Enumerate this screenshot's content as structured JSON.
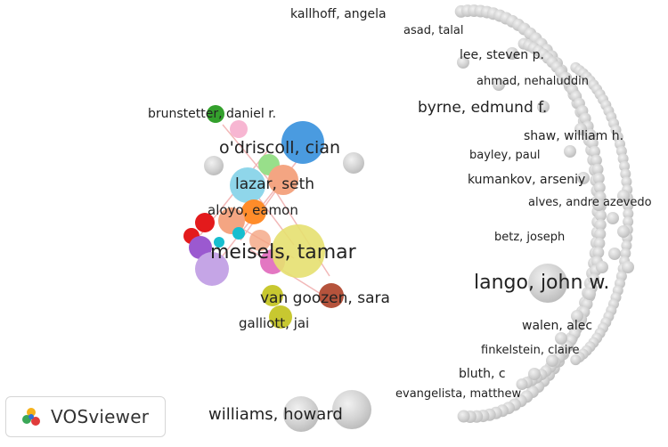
{
  "app": {
    "name": "VOSviewer"
  },
  "network": {
    "type": "co-authorship network",
    "labels": [
      {
        "id": "kallhoff-angela",
        "text": "kallhoff, angela",
        "cluster_color": "#bdbdbd"
      },
      {
        "id": "asad-talal",
        "text": "asad, talal",
        "cluster_color": "#bdbdbd"
      },
      {
        "id": "lee-steven-p",
        "text": "lee, steven p.",
        "cluster_color": "#bdbdbd"
      },
      {
        "id": "ahmad-nehaluddin",
        "text": "ahmad, nehaluddin",
        "cluster_color": "#bdbdbd"
      },
      {
        "id": "byrne-edmund-f",
        "text": "byrne, edmund f.",
        "cluster_color": "#bdbdbd"
      },
      {
        "id": "shaw-william-h",
        "text": "shaw, william h.",
        "cluster_color": "#bdbdbd"
      },
      {
        "id": "bayley-paul",
        "text": "bayley, paul",
        "cluster_color": "#bdbdbd"
      },
      {
        "id": "kumankov-arseniy",
        "text": "kumankov, arseniy",
        "cluster_color": "#bdbdbd"
      },
      {
        "id": "alves-andre-azevedo",
        "text": "alves, andre azevedo",
        "cluster_color": "#bdbdbd"
      },
      {
        "id": "betz-joseph",
        "text": "betz, joseph",
        "cluster_color": "#bdbdbd"
      },
      {
        "id": "lango-john-w",
        "text": "lango, john w.",
        "cluster_color": "#bdbdbd"
      },
      {
        "id": "walen-alec",
        "text": "walen, alec",
        "cluster_color": "#bdbdbd"
      },
      {
        "id": "finkelstein-claire",
        "text": "finkelstein, claire",
        "cluster_color": "#bdbdbd"
      },
      {
        "id": "bluth-c",
        "text": "bluth, c",
        "cluster_color": "#bdbdbd"
      },
      {
        "id": "evangelista-matthew",
        "text": "evangelista, matthew",
        "cluster_color": "#bdbdbd"
      },
      {
        "id": "williams-howard",
        "text": "williams, howard",
        "cluster_color": "#bdbdbd"
      },
      {
        "id": "brunstetter-daniel-r",
        "text": "brunstetter, daniel r.",
        "cluster_color": "#2ca02c"
      },
      {
        "id": "odriscoll-cian",
        "text": "o'driscoll, cian",
        "cluster_color": "#2ca02c"
      },
      {
        "id": "lazar-seth",
        "text": "lazar, seth",
        "cluster_color": "#7fd0e6"
      },
      {
        "id": "aloyo-eamon",
        "text": "aloyo, eamon",
        "cluster_color": "#ff8c2a"
      },
      {
        "id": "meisels-tamar",
        "text": "meisels, tamar",
        "cluster_color": "#e6e070"
      },
      {
        "id": "van-goozen-sara",
        "text": "van goozen, sara",
        "cluster_color": "#a0522d"
      },
      {
        "id": "galliott-jai",
        "text": "galliott, jai",
        "cluster_color": "#c8c830"
      }
    ],
    "colors": {
      "peripheral": "#cfcfcf",
      "blue": "#4a9be0",
      "light_blue": "#8fd6ea",
      "green": "#33a02c",
      "light_green": "#98df8a",
      "red": "#e31a1c",
      "orange": "#ff8c2a",
      "salmon": "#f4a582",
      "pink": "#f7b6d2",
      "magenta": "#e377c2",
      "purple": "#9b59d0",
      "lavender": "#c5a5e6",
      "yellow": "#e6e070",
      "olive": "#c8c830",
      "brown": "#b5533c",
      "cyan": "#17becf",
      "link": "#f2b8b8"
    }
  }
}
